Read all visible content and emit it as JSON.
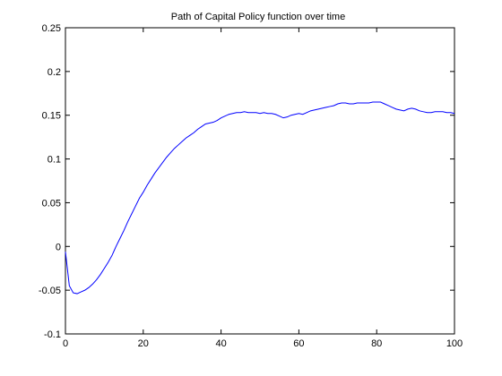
{
  "chart_data": {
    "type": "line",
    "title": "Path of Capital Policy function over time",
    "xlabel": "",
    "ylabel": "",
    "xlim": [
      0,
      100
    ],
    "ylim": [
      -0.1,
      0.25
    ],
    "x_ticks": [
      0,
      20,
      40,
      60,
      80,
      100
    ],
    "x_tick_labels": [
      "0",
      "20",
      "40",
      "60",
      "80",
      "100"
    ],
    "y_ticks": [
      -0.1,
      -0.05,
      0,
      0.05,
      0.1,
      0.15,
      0.2,
      0.25
    ],
    "y_tick_labels": [
      "-0.1",
      "-0.05",
      "0",
      "0.05",
      "0.1",
      "0.15",
      "0.2",
      "0.25"
    ],
    "grid": false,
    "series": [
      {
        "color": "#0000ff",
        "x": [
          0,
          1,
          2,
          3,
          4,
          5,
          6,
          7,
          8,
          9,
          10,
          11,
          12,
          13,
          14,
          15,
          16,
          17,
          18,
          19,
          20,
          21,
          22,
          23,
          24,
          25,
          26,
          27,
          28,
          29,
          30,
          31,
          32,
          33,
          34,
          35,
          36,
          37,
          38,
          39,
          40,
          41,
          42,
          43,
          44,
          45,
          46,
          47,
          48,
          49,
          50,
          51,
          52,
          53,
          54,
          55,
          56,
          57,
          58,
          59,
          60,
          61,
          62,
          63,
          64,
          65,
          66,
          67,
          68,
          69,
          70,
          71,
          72,
          73,
          74,
          75,
          76,
          77,
          78,
          79,
          80,
          81,
          82,
          83,
          84,
          85,
          86,
          87,
          88,
          89,
          90,
          91,
          92,
          93,
          94,
          95,
          96,
          97,
          98,
          99,
          100
        ],
        "y": [
          -0.006,
          -0.045,
          -0.053,
          -0.054,
          -0.052,
          -0.05,
          -0.047,
          -0.043,
          -0.038,
          -0.032,
          -0.025,
          -0.018,
          -0.01,
          0.0,
          0.009,
          0.018,
          0.028,
          0.037,
          0.046,
          0.055,
          0.062,
          0.07,
          0.077,
          0.084,
          0.09,
          0.096,
          0.102,
          0.107,
          0.112,
          0.116,
          0.12,
          0.124,
          0.127,
          0.13,
          0.134,
          0.137,
          0.14,
          0.141,
          0.142,
          0.144,
          0.147,
          0.149,
          0.151,
          0.152,
          0.153,
          0.153,
          0.154,
          0.153,
          0.153,
          0.153,
          0.152,
          0.153,
          0.152,
          0.152,
          0.151,
          0.149,
          0.147,
          0.148,
          0.15,
          0.151,
          0.152,
          0.151,
          0.153,
          0.155,
          0.156,
          0.157,
          0.158,
          0.159,
          0.16,
          0.161,
          0.163,
          0.164,
          0.164,
          0.163,
          0.163,
          0.164,
          0.164,
          0.164,
          0.164,
          0.165,
          0.165,
          0.165,
          0.163,
          0.161,
          0.159,
          0.157,
          0.156,
          0.155,
          0.157,
          0.158,
          0.157,
          0.155,
          0.154,
          0.153,
          0.153,
          0.154,
          0.154,
          0.154,
          0.153,
          0.153,
          0.152
        ]
      }
    ]
  }
}
